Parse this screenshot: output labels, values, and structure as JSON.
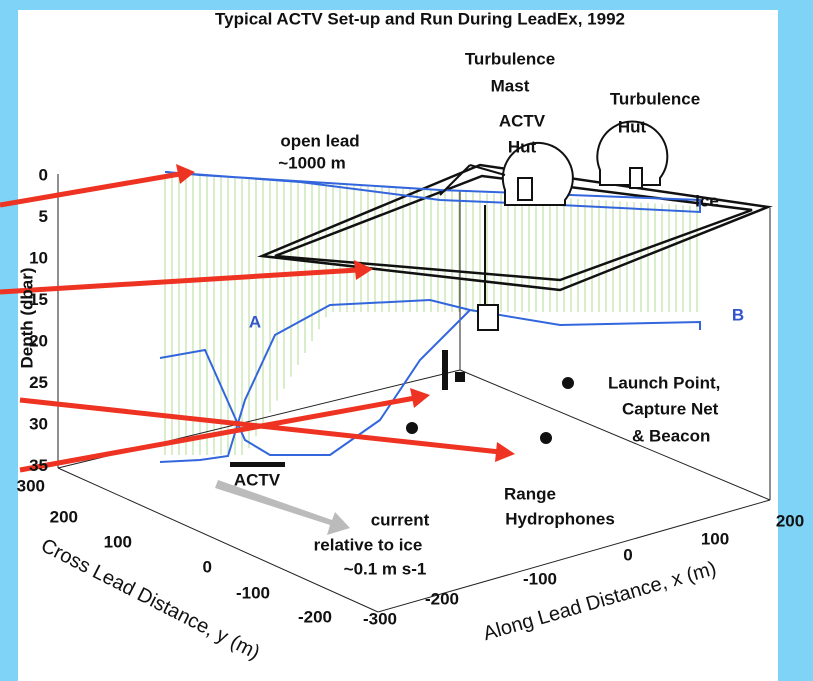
{
  "title": "Typical  ACTV Set-up and Run During LeadEx, 1992",
  "labels": {
    "turbulence_mast": [
      "Turbulence",
      "Mast"
    ],
    "turbulence_hut": [
      "Turbulence",
      "Hut"
    ],
    "actv_hut": [
      "ACTV",
      "Hut"
    ],
    "open_lead": [
      "open lead",
      "~1000 m"
    ],
    "ice": "Ice",
    "profile_a": "A",
    "profile_b": "B",
    "launch_point": [
      "Launch Point,",
      "Capture Net",
      "& Beacon"
    ],
    "actv": "ACTV",
    "range_hydrophones": [
      "Range",
      "Hydrophones"
    ],
    "current": [
      "current",
      "relative to ice",
      "~0.1 m s-1"
    ]
  },
  "axes": {
    "depth": {
      "label": "Depth (dbar)",
      "ticks": [
        0,
        5,
        10,
        15,
        20,
        25,
        30,
        35
      ]
    },
    "cross": {
      "label": "Cross Lead Distance, y (m)",
      "ticks": [
        300,
        200,
        100,
        0,
        -100,
        -200
      ]
    },
    "along": {
      "label": "Along Lead Distance, x (m)",
      "ticks": [
        -300,
        -200,
        -100,
        0,
        100,
        200
      ]
    }
  }
}
